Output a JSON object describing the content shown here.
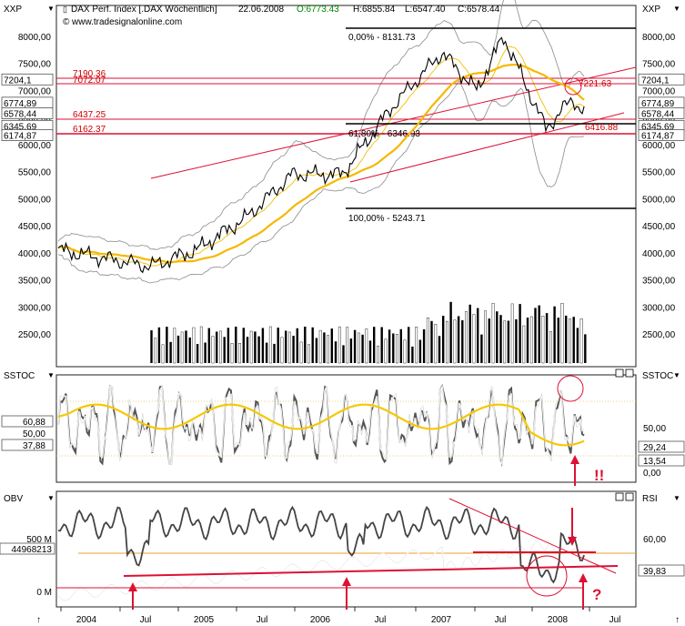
{
  "header": {
    "symbol_axis_left": "XXP",
    "symbol_axis_right": "XXP",
    "title": "DAX Perf. Index [.DAX Wöchentlich]",
    "date": "22.06.2008",
    "open": "O:6773.43",
    "high": "H:6855.84",
    "low": "L:6547.40",
    "close": "C:6578.44",
    "source": "www.tradesignalonline.com"
  },
  "colors": {
    "price": "#000000",
    "ma_slow": "#f5b800",
    "bollinger": "#8a8a8a",
    "signal_red": "#dd1133",
    "stoch_fast": "#ffffff",
    "stoch_slow": "#555555",
    "volume_black": "#000000",
    "volume_white": "#ffffff"
  },
  "price_panel": {
    "y_ticks": [
      "8000,00",
      "7500,00",
      "7000,00",
      "6500,00",
      "6000,00",
      "5500,00",
      "5000,00",
      "4500,00",
      "4000,00",
      "3500,00",
      "3000,00",
      "2500,00"
    ],
    "left_boxes": [
      "7204,1",
      "6774,89",
      "6578,44",
      "6345,69",
      "6174,87"
    ],
    "right_boxes": [
      "7204,1",
      "6774,89",
      "6578,44",
      "6345,69",
      "6174,87"
    ],
    "levels": [
      "7190.36",
      "7072.07",
      "6437.25",
      "6162.37"
    ],
    "fib_top": "0,00% - 8131.73",
    "fib_mid": "61,80% - 6346.93",
    "fib_bottom": "100,00% - 5243.71",
    "tag_high": "7221.63",
    "tag_low": "6416.88"
  },
  "stoch_panel": {
    "title": "SSTOC",
    "title_right": "SSTOC",
    "left_ticks": [
      "60,88",
      "50,00",
      "37,88"
    ],
    "right_ticks": [
      "50,00",
      "29,24",
      "13,54",
      "0,00"
    ],
    "signal_text": "!!"
  },
  "obv_panel": {
    "title": "OBV",
    "title_right": "RSI",
    "left_ticks": [
      "500 M",
      "44968213",
      "0 M"
    ],
    "right_ticks": [
      "60,00",
      "39,83"
    ],
    "signal_text": "?"
  },
  "x_axis": {
    "labels": [
      "2004",
      "Jul",
      "2005",
      "Jul",
      "2006",
      "Jul",
      "2007",
      "Jul",
      "2008",
      "Jul"
    ]
  },
  "chart_data": {
    "type": "line",
    "title": "DAX Perf. Index [.DAX Wöchentlich]",
    "x": [
      "2004",
      "Jul 2004",
      "2005",
      "Jul 2005",
      "2006",
      "Jul 2006",
      "2007",
      "Jul 2007",
      "2008",
      "Jun 2008"
    ],
    "series": [
      {
        "values": [
          4000,
          3750,
          4250,
          4650,
          5450,
          5500,
          6700,
          8000,
          6900,
          6578
        ]
      },
      {
        "values": [
          3900,
          3850,
          4100,
          4400,
          4900,
          5350,
          5900,
          6600,
          6800,
          6600
        ]
      }
    ],
    "ylim": [
      2000,
      8500
    ],
    "levels": [
      8131.73,
      7190.36,
      7072.07,
      6437.25,
      6346.93,
      6162.37,
      5243.71
    ],
    "last_close": 6578.44
  }
}
